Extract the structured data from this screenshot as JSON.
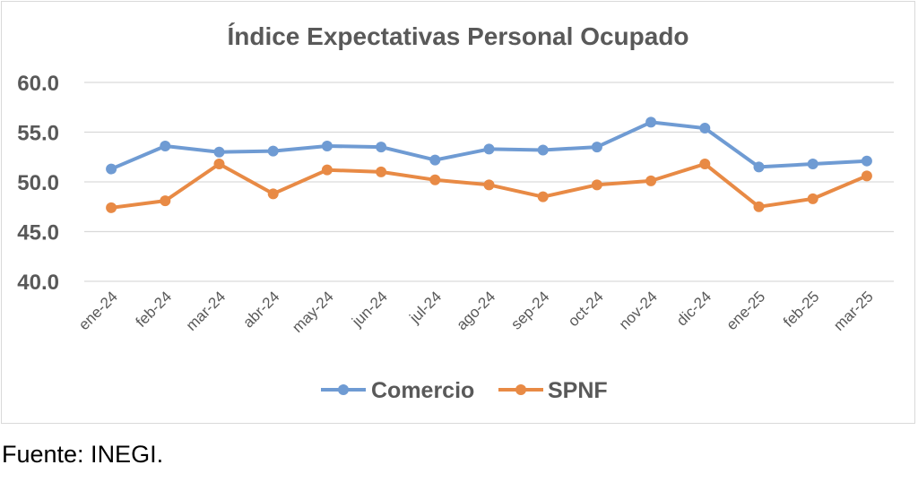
{
  "chart_data": {
    "type": "line",
    "title": "Índice Expectativas Personal Ocupado",
    "categories": [
      "ene-24",
      "feb-24",
      "mar-24",
      "abr-24",
      "may-24",
      "jun-24",
      "jul-24",
      "ago-24",
      "sep-24",
      "oct-24",
      "nov-24",
      "dic-24",
      "ene-25",
      "feb-25",
      "mar-25"
    ],
    "series": [
      {
        "name": "Comercio",
        "color": "#6f9bd3",
        "values": [
          51.3,
          53.6,
          53.0,
          53.1,
          53.6,
          53.5,
          52.2,
          53.3,
          53.2,
          53.5,
          56.0,
          55.4,
          51.5,
          51.8,
          52.1
        ]
      },
      {
        "name": "SPNF",
        "color": "#e88a45",
        "values": [
          47.4,
          48.1,
          51.8,
          48.8,
          51.2,
          51.0,
          50.2,
          49.7,
          48.5,
          49.7,
          50.1,
          51.8,
          47.5,
          48.3,
          50.6
        ]
      }
    ],
    "yticks": [
      "60.0",
      "55.0",
      "50.0",
      "45.0",
      "40.0"
    ],
    "ylim": [
      40,
      60
    ],
    "grid": true,
    "legend": "bottom"
  },
  "footer": {
    "source": "Fuente: INEGI."
  }
}
